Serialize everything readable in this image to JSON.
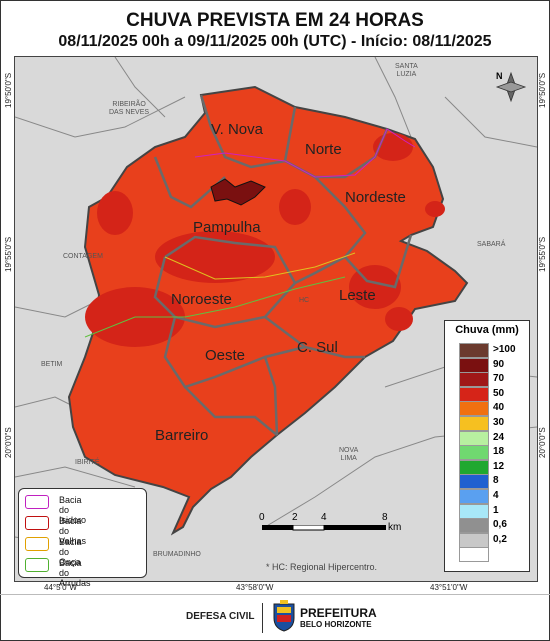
{
  "header": {
    "title": "CHUVA PREVISTA EM 24 HORAS",
    "subtitle": "08/11/2025 00h a 09/11/2025 00h (UTC) - Início: 08/11/2025"
  },
  "coordinates": {
    "left": [
      "19°50'0\"S",
      "19°55'0\"S",
      "20°0'0\"S"
    ],
    "right": [
      "19°50'0\"S",
      "19°55'0\"S",
      "20°0'0\"S"
    ],
    "bottom": [
      "44°5'0\"W",
      "43°58'0\"W",
      "43°51'0\"W"
    ]
  },
  "places": {
    "santa_luzia": "SANTA\nLUZIA",
    "ribeirao": "RIBEIRÃO\nDAS NEVES",
    "contagem": "CONTAGEM",
    "sabara": "SABARÁ",
    "betim": "BETIM",
    "ibirite": "IBIRITÉ",
    "nova_lima": "NOVA\nLIMA",
    "brumadinho": "BRUMADINHO",
    "hc": "HC"
  },
  "regions": {
    "venda_nova": "V. Nova",
    "norte": "Norte",
    "nordeste": "Nordeste",
    "pampulha": "Pampulha",
    "noroeste": "Noroeste",
    "leste": "Leste",
    "oeste": "Oeste",
    "centro_sul": "C. Sul",
    "barreiro": "Barreiro"
  },
  "legend": {
    "title": "Chuva (mm)",
    "items": [
      {
        "label": ">100",
        "color": "#6b3a2e"
      },
      {
        "label": "90",
        "color": "#7a1010"
      },
      {
        "label": "70",
        "color": "#a01818"
      },
      {
        "label": "50",
        "color": "#d62418"
      },
      {
        "label": "40",
        "color": "#f07010"
      },
      {
        "label": "30",
        "color": "#f6c020"
      },
      {
        "label": "24",
        "color": "#b8f0a0"
      },
      {
        "label": "18",
        "color": "#70d870"
      },
      {
        "label": "12",
        "color": "#20a830"
      },
      {
        "label": "8",
        "color": "#2060d0"
      },
      {
        "label": "4",
        "color": "#5aa0f0"
      },
      {
        "label": "1",
        "color": "#a8e8f8"
      },
      {
        "label": "0,6",
        "color": "#909090"
      },
      {
        "label": "0,2",
        "color": "#c8c8c8"
      },
      {
        "label": "",
        "color": "#ffffff"
      }
    ]
  },
  "basins": [
    {
      "label": "Bacia do Isidoro",
      "color": "#c020c0"
    },
    {
      "label": "Bacia do Velhas",
      "color": "#c01010"
    },
    {
      "label": "Bacia do Onça",
      "color": "#e0a000"
    },
    {
      "label": "Bacia do Arrudas",
      "color": "#50b030"
    }
  ],
  "scale": {
    "ticks": [
      "0",
      "2",
      "4",
      "8"
    ],
    "unit": "km"
  },
  "note": "* HC: Regional Hipercentro.",
  "north_label": "N",
  "footer": {
    "defesa": "DEFESA CIVIL",
    "prefeitura": "PREFEITURA",
    "cidade": "BELO HORIZONTE"
  }
}
